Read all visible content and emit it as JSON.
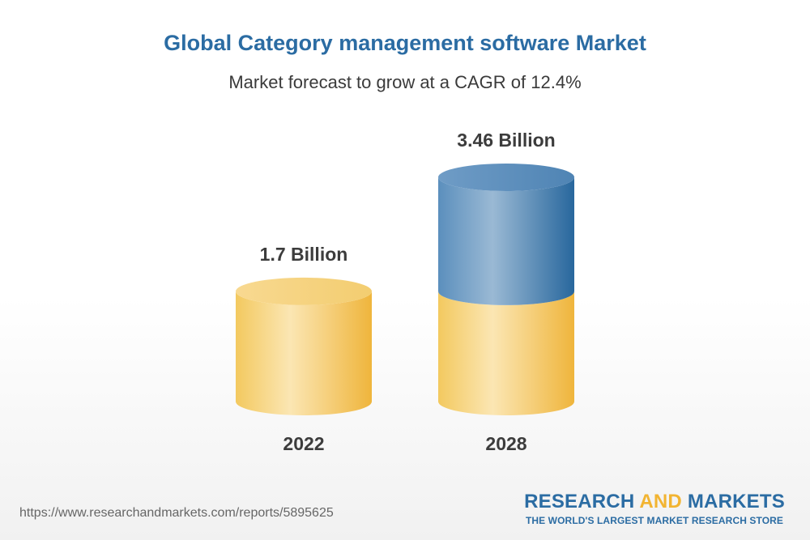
{
  "header": {
    "title": "Global Category management software Market",
    "subtitle": "Market forecast to grow at a CAGR of 12.4%"
  },
  "chart_data": {
    "type": "bar",
    "title": "Global Category management software Market",
    "subtitle": "Market forecast to grow at a CAGR of 12.4%",
    "categories": [
      "2022",
      "2028"
    ],
    "values": [
      1.7,
      3.46
    ],
    "value_labels": [
      "1.7 Billion",
      "3.46 Billion"
    ],
    "unit": "Billion",
    "xlabel": "",
    "ylabel": "",
    "ylim": [
      0,
      3.46
    ],
    "grid": false,
    "colors": {
      "base": "#f2c65c",
      "growth": "#4a86b8"
    }
  },
  "footer": {
    "url": "https://www.researchandmarkets.com/reports/5895625",
    "brand_primary": "RESEARCH",
    "brand_accent": "AND",
    "brand_secondary": "MARKETS",
    "brand_tagline": "THE WORLD'S LARGEST MARKET RESEARCH STORE"
  }
}
